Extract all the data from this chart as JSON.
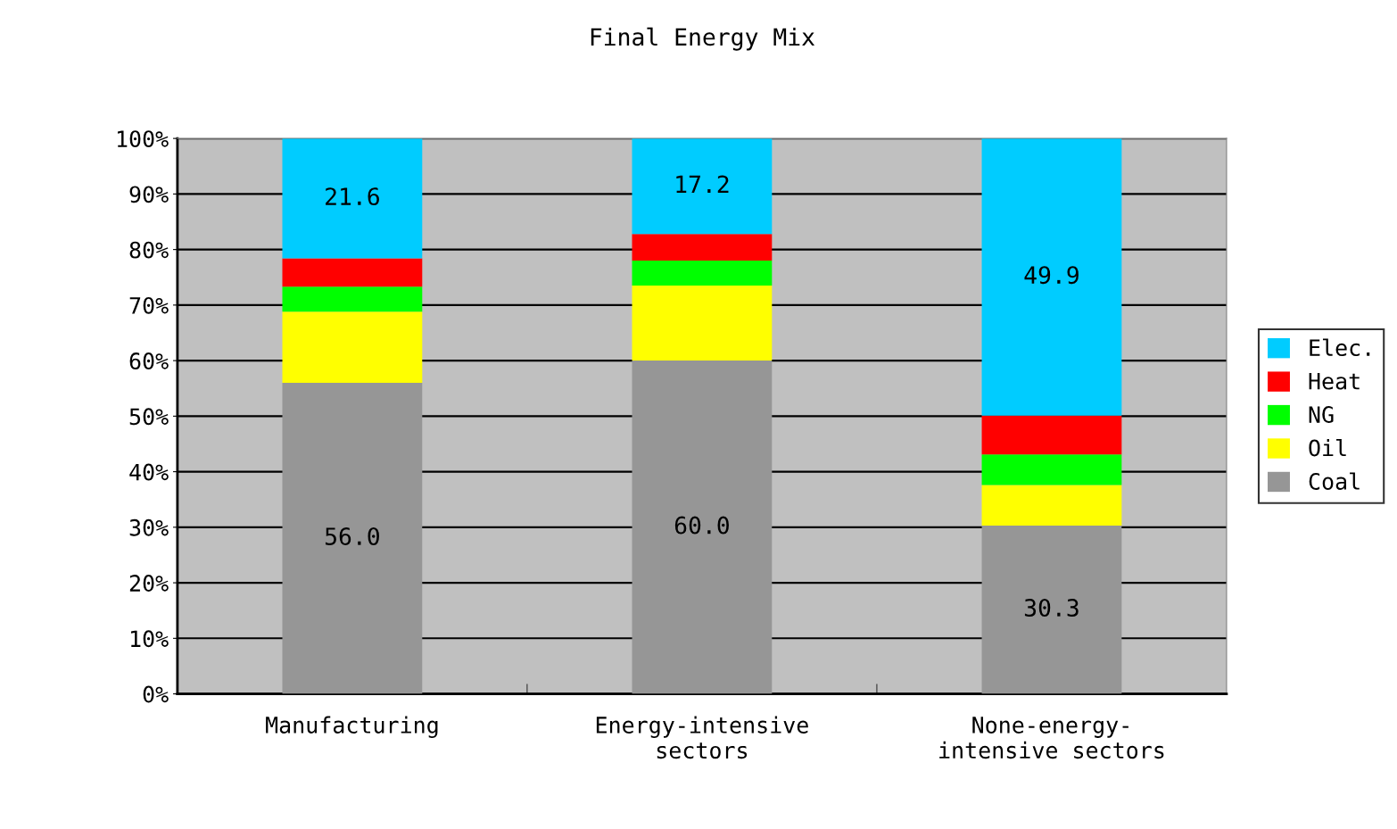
{
  "chart_data": {
    "type": "bar",
    "stacked": true,
    "title": "Final Energy Mix",
    "categories": [
      "Manufacturing",
      "Energy-intensive\nsectors",
      "None-energy-\nintensive sectors"
    ],
    "series": [
      {
        "name": "Coal",
        "color": "#969696",
        "values": [
          56.0,
          60.0,
          30.3
        ],
        "value_labels": [
          "56.0",
          "60.0",
          "30.3"
        ]
      },
      {
        "name": "Oil",
        "color": "#ffff00",
        "values": [
          12.8,
          13.5,
          7.3
        ]
      },
      {
        "name": "NG",
        "color": "#00ff00",
        "values": [
          4.5,
          4.5,
          5.5
        ]
      },
      {
        "name": "Heat",
        "color": "#ff0000",
        "values": [
          5.1,
          4.8,
          7.0
        ]
      },
      {
        "name": "Elec.",
        "color": "#00ccff",
        "values": [
          21.6,
          17.2,
          49.9
        ],
        "value_labels": [
          "21.6",
          "17.2",
          "49.9"
        ]
      }
    ],
    "ylim": [
      0,
      100
    ],
    "yticks": [
      {
        "value": 0,
        "label": "0%"
      },
      {
        "value": 10,
        "label": "10%"
      },
      {
        "value": 20,
        "label": "20%"
      },
      {
        "value": 30,
        "label": "30%"
      },
      {
        "value": 40,
        "label": "40%"
      },
      {
        "value": 50,
        "label": "50%"
      },
      {
        "value": 60,
        "label": "60%"
      },
      {
        "value": 70,
        "label": "70%"
      },
      {
        "value": 80,
        "label": "80%"
      },
      {
        "value": 90,
        "label": "90%"
      },
      {
        "value": 100,
        "label": "100%"
      }
    ],
    "grid": "y",
    "legend": "right"
  }
}
